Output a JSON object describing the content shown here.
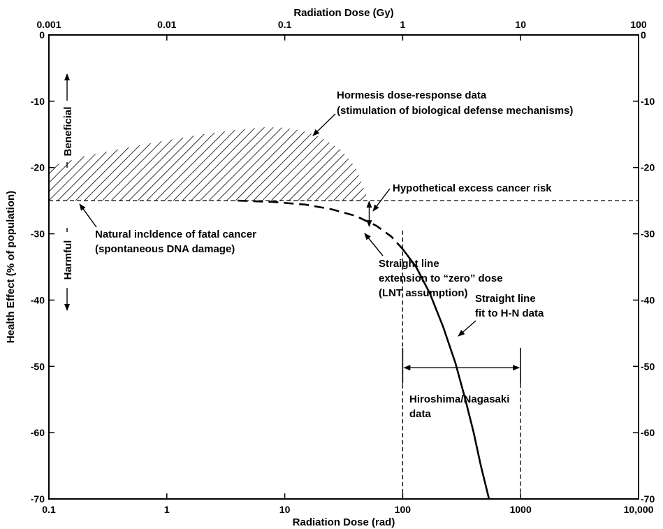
{
  "chart_data": {
    "type": "line",
    "x_axis_bottom": {
      "label": "Radiation Dose (rad)",
      "scale": "log",
      "range": [
        0.1,
        10000
      ],
      "ticks": [
        {
          "value": 0.1,
          "label": "0.1"
        },
        {
          "value": 1,
          "label": "1"
        },
        {
          "value": 10,
          "label": "10"
        },
        {
          "value": 100,
          "label": "100"
        },
        {
          "value": 1000,
          "label": "1000"
        },
        {
          "value": 10000,
          "label": "10,000"
        }
      ]
    },
    "x_axis_top": {
      "label": "Radiation Dose (Gy)",
      "scale": "log",
      "ticks": [
        {
          "value": 0.1,
          "label": "0.001"
        },
        {
          "value": 1,
          "label": "0.01"
        },
        {
          "value": 10,
          "label": "0.1"
        },
        {
          "value": 100,
          "label": "1"
        },
        {
          "value": 1000,
          "label": "10"
        },
        {
          "value": 10000,
          "label": "100"
        }
      ]
    },
    "y_axis": {
      "label": "Health Effect (% of population)",
      "range": [
        -70,
        0
      ],
      "ticks_left": [
        {
          "value": 0,
          "label": "0"
        },
        {
          "value": -10,
          "label": "-10"
        },
        {
          "value": -20,
          "label": "-20"
        },
        {
          "value": -30,
          "label": "-30"
        },
        {
          "value": -40,
          "label": "-40"
        },
        {
          "value": -50,
          "label": "-50"
        },
        {
          "value": -60,
          "label": "-60"
        },
        {
          "value": -70,
          "label": "-70"
        }
      ],
      "ticks_right": [
        {
          "value": 0,
          "label": "0"
        },
        {
          "value": -10,
          "label": "-10"
        },
        {
          "value": -20,
          "label": "-20"
        },
        {
          "value": -30,
          "label": "-30"
        },
        {
          "value": -40,
          "label": "-40"
        },
        {
          "value": -50,
          "label": "-50"
        },
        {
          "value": -60,
          "label": "-60"
        },
        {
          "value": -70,
          "label": "-70"
        }
      ]
    },
    "baseline": {
      "y": -25,
      "style": "dashed"
    },
    "hormesis_region": {
      "upper": [
        {
          "x": 0.1,
          "y": -19.9
        },
        {
          "x": 0.2,
          "y": -18.3
        },
        {
          "x": 0.4,
          "y": -17.2
        },
        {
          "x": 0.7,
          "y": -16.4
        },
        {
          "x": 1,
          "y": -15.9
        },
        {
          "x": 2,
          "y": -15.0
        },
        {
          "x": 4,
          "y": -14.3
        },
        {
          "x": 7,
          "y": -13.9
        },
        {
          "x": 10,
          "y": -14.0
        },
        {
          "x": 15,
          "y": -14.6
        },
        {
          "x": 20,
          "y": -15.4
        },
        {
          "x": 30,
          "y": -17.3
        },
        {
          "x": 40,
          "y": -20.0
        },
        {
          "x": 50,
          "y": -24.5
        }
      ],
      "lower": [
        {
          "x": 0.1,
          "y": -25
        },
        {
          "x": 50,
          "y": -25
        }
      ]
    },
    "series": [
      {
        "style": "dashed",
        "points": [
          {
            "x": 4,
            "y": -25
          },
          {
            "x": 8,
            "y": -25.2
          },
          {
            "x": 15,
            "y": -25.6
          },
          {
            "x": 25,
            "y": -26.3
          },
          {
            "x": 40,
            "y": -27.3
          },
          {
            "x": 60,
            "y": -28.8
          },
          {
            "x": 80,
            "y": -30.4
          },
          {
            "x": 100,
            "y": -32.3
          }
        ]
      },
      {
        "style": "solid",
        "points": [
          {
            "x": 100,
            "y": -32.3
          },
          {
            "x": 130,
            "y": -35
          },
          {
            "x": 170,
            "y": -39
          },
          {
            "x": 220,
            "y": -44
          },
          {
            "x": 280,
            "y": -49.5
          },
          {
            "x": 340,
            "y": -55
          },
          {
            "x": 400,
            "y": -60
          },
          {
            "x": 460,
            "y": -65
          },
          {
            "x": 540,
            "y": -70
          }
        ]
      }
    ],
    "hn_data_range": {
      "x_min": 100,
      "x_max": 1000,
      "arrow_y": -50.2
    },
    "excess_risk_arrow": {
      "x": 52,
      "y_from": -25,
      "y_to": -29
    },
    "annotations": {
      "beneficial": "Beneficial",
      "harmful": "Harmful",
      "hormesis_line1": "Hormesis dose-response data",
      "hormesis_line2": "(stimulation of biological defense mechanisms)",
      "excess_risk": "Hypothetical excess cancer risk",
      "natural_line1": "Natural incldence of fatal cancer",
      "natural_line2": "(spontaneous DNA damage)",
      "lnt_line1": "Straight line",
      "lnt_line2": "extension to “zero” dose",
      "lnt_line3": "(LNT assumption)",
      "fit_line1": "Straight line",
      "fit_line2": "fit to H-N data",
      "hn_line1": "Hiroshima/Nagasaki",
      "hn_line2": "data"
    }
  }
}
